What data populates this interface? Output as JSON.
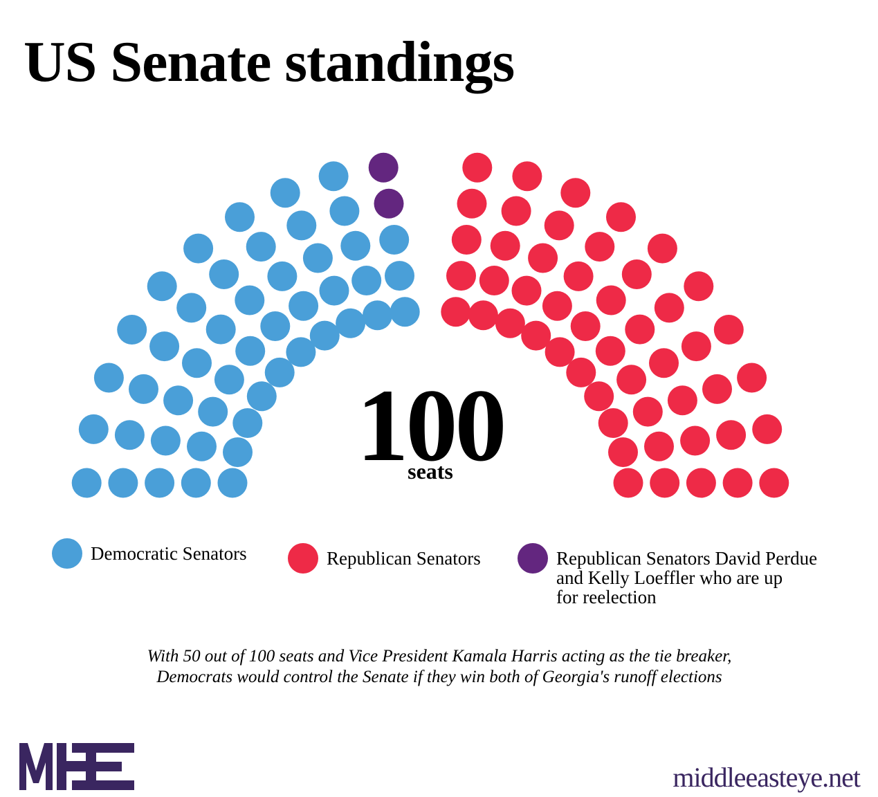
{
  "title": "US Senate standings",
  "total": {
    "number": "100",
    "label": "seats"
  },
  "chart_data": {
    "type": "parliament",
    "title": "US Senate standings",
    "total_seats": 100,
    "rows": 5,
    "series": [
      {
        "name": "Democratic Senators",
        "seats": 48,
        "color": "#4a9fd8"
      },
      {
        "name": "Republican Senators David Perdue and Kelly Loeffler who are up for reelection",
        "seats": 2,
        "color": "#63267f"
      },
      {
        "name": "Republican Senators",
        "seats": 50,
        "color": "#ee2a47"
      }
    ],
    "legend_placement": "bottom"
  },
  "legend": [
    {
      "label": "Democratic Senators",
      "color": "#4a9fd8"
    },
    {
      "label": "Republican Senators",
      "color": "#ee2a47"
    },
    {
      "label_lines": [
        "Republican Senators David Perdue",
        "and Kelly Loeffler who are up",
        "for reelection"
      ],
      "color": "#63267f"
    }
  ],
  "caption": [
    "With 50 out of 100 seats and Vice President Kamala Harris acting as the tie breaker,",
    "Democrats would control the Senate if they win both of Georgia's runoff elections"
  ],
  "branding": {
    "logo": "MEE",
    "site": "middleeasteye.net",
    "color": "#3a2660"
  }
}
